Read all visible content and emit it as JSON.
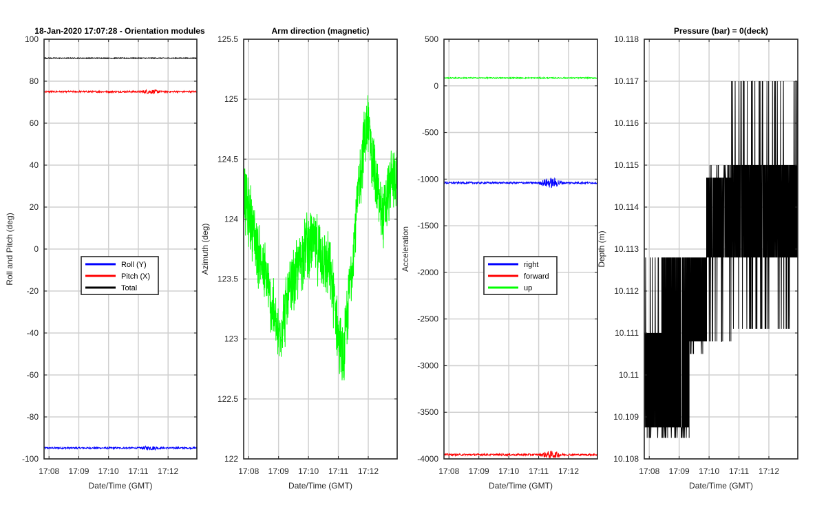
{
  "chart_data": [
    {
      "type": "line",
      "title": "18-Jan-2020 17:07:28 - Orientation modules",
      "xlabel": "Date/Time (GMT)",
      "ylabel": "Roll and Pitch (deg)",
      "xlim": [
        "17:07:50",
        "17:12:58"
      ],
      "ylim": [
        -100,
        100
      ],
      "xticks": [
        "17:08",
        "17:09",
        "17:10",
        "17:11",
        "17:12"
      ],
      "yticks": [
        -100,
        -80,
        -60,
        -40,
        -20,
        0,
        20,
        40,
        60,
        80,
        100
      ],
      "grid": true,
      "legend": "center",
      "series": [
        {
          "name": "Roll (Y)",
          "color": "#0000ff",
          "level": -94.8,
          "noise": 0.4,
          "burst": {
            "from": "17:11:00",
            "to": "17:11:50",
            "amp": 0.6
          }
        },
        {
          "name": "Pitch (X)",
          "color": "#ff0000",
          "level": 75.0,
          "noise": 0.4,
          "burst": {
            "from": "17:11:00",
            "to": "17:11:50",
            "amp": 0.6
          }
        },
        {
          "name": "Total",
          "color": "#000000",
          "level": 91.0,
          "noise": 0.2
        }
      ]
    },
    {
      "type": "line",
      "title": "Arm direction (magnetic)",
      "xlabel": "Date/Time (GMT)",
      "ylabel": "Azimuth (deg)",
      "xlim": [
        "17:07:50",
        "17:12:58"
      ],
      "ylim": [
        122,
        125.5
      ],
      "xticks": [
        "17:08",
        "17:09",
        "17:10",
        "17:11",
        "17:12"
      ],
      "yticks": [
        122,
        122.5,
        123,
        123.5,
        124,
        124.5,
        125,
        125.5
      ],
      "grid": true,
      "series": [
        {
          "color": "#00ff00",
          "x": [
            "17:07:50",
            "17:08:05",
            "17:08:20",
            "17:08:35",
            "17:08:50",
            "17:09:00",
            "17:09:10",
            "17:09:25",
            "17:09:40",
            "17:09:55",
            "17:10:10",
            "17:10:25",
            "17:10:40",
            "17:10:50",
            "17:11:00",
            "17:11:10",
            "17:11:20",
            "17:11:35",
            "17:11:50",
            "17:12:00",
            "17:12:15",
            "17:12:30",
            "17:12:45",
            "17:12:58"
          ],
          "y": [
            124.2,
            124.0,
            123.7,
            123.5,
            123.2,
            123.0,
            123.2,
            123.4,
            123.6,
            123.8,
            123.8,
            123.7,
            123.6,
            123.4,
            123.0,
            122.8,
            123.3,
            124.0,
            124.6,
            124.8,
            124.3,
            124.0,
            124.3,
            124.4
          ],
          "noise": 0.33
        }
      ]
    },
    {
      "type": "line",
      "xlabel": "Date/Time (GMT)",
      "ylabel": "Acceleration",
      "xlim": [
        "17:07:50",
        "17:12:58"
      ],
      "ylim": [
        -4000,
        500
      ],
      "xticks": [
        "17:08",
        "17:09",
        "17:10",
        "17:11",
        "17:12"
      ],
      "yticks": [
        -4000,
        -3500,
        -3000,
        -2500,
        -2000,
        -1500,
        -1000,
        -500,
        0,
        500
      ],
      "grid": true,
      "legend": "center",
      "series": [
        {
          "name": "right",
          "color": "#0000ff",
          "level": -1040,
          "noise": 10,
          "burst": {
            "from": "17:11:00",
            "to": "17:11:50",
            "amp": 45
          }
        },
        {
          "name": "forward",
          "color": "#ff0000",
          "level": -3955,
          "noise": 10,
          "burst": {
            "from": "17:11:00",
            "to": "17:11:50",
            "amp": 30
          }
        },
        {
          "name": "up",
          "color": "#00ff00",
          "level": 85,
          "noise": 6
        }
      ]
    },
    {
      "type": "line",
      "title": "Pressure (bar) = 0(deck)",
      "xlabel": "Date/Time (GMT)",
      "ylabel": "Depth (m)",
      "xlim": [
        "17:07:50",
        "17:12:58"
      ],
      "ylim": [
        10.108,
        10.118
      ],
      "xticks": [
        "17:08",
        "17:09",
        "17:10",
        "17:11",
        "17:12"
      ],
      "yticks": [
        10.108,
        10.109,
        10.11,
        10.111,
        10.112,
        10.113,
        10.114,
        10.115,
        10.116,
        10.117,
        10.118
      ],
      "grid": true,
      "series": [
        {
          "color": "#000000",
          "segments": [
            {
              "from": "17:07:50",
              "to": "17:08:25",
              "low": 10.10875,
              "high": 10.111,
              "dips": 10.1085,
              "spikes": 10.1128
            },
            {
              "from": "17:08:25",
              "to": "17:09:20",
              "low": 10.10875,
              "high": 10.1128,
              "dips": 10.1085
            },
            {
              "from": "17:09:20",
              "to": "17:09:55",
              "low": 10.1108,
              "high": 10.1128,
              "dips": 10.1105
            },
            {
              "from": "17:09:55",
              "to": "17:10:45",
              "low": 10.1128,
              "high": 10.1147,
              "dips": 10.1108,
              "spikes": 10.115
            },
            {
              "from": "17:10:45",
              "to": "17:12:58",
              "low": 10.1128,
              "high": 10.115,
              "dips": 10.1111,
              "spikes": 10.117
            }
          ]
        }
      ]
    }
  ]
}
